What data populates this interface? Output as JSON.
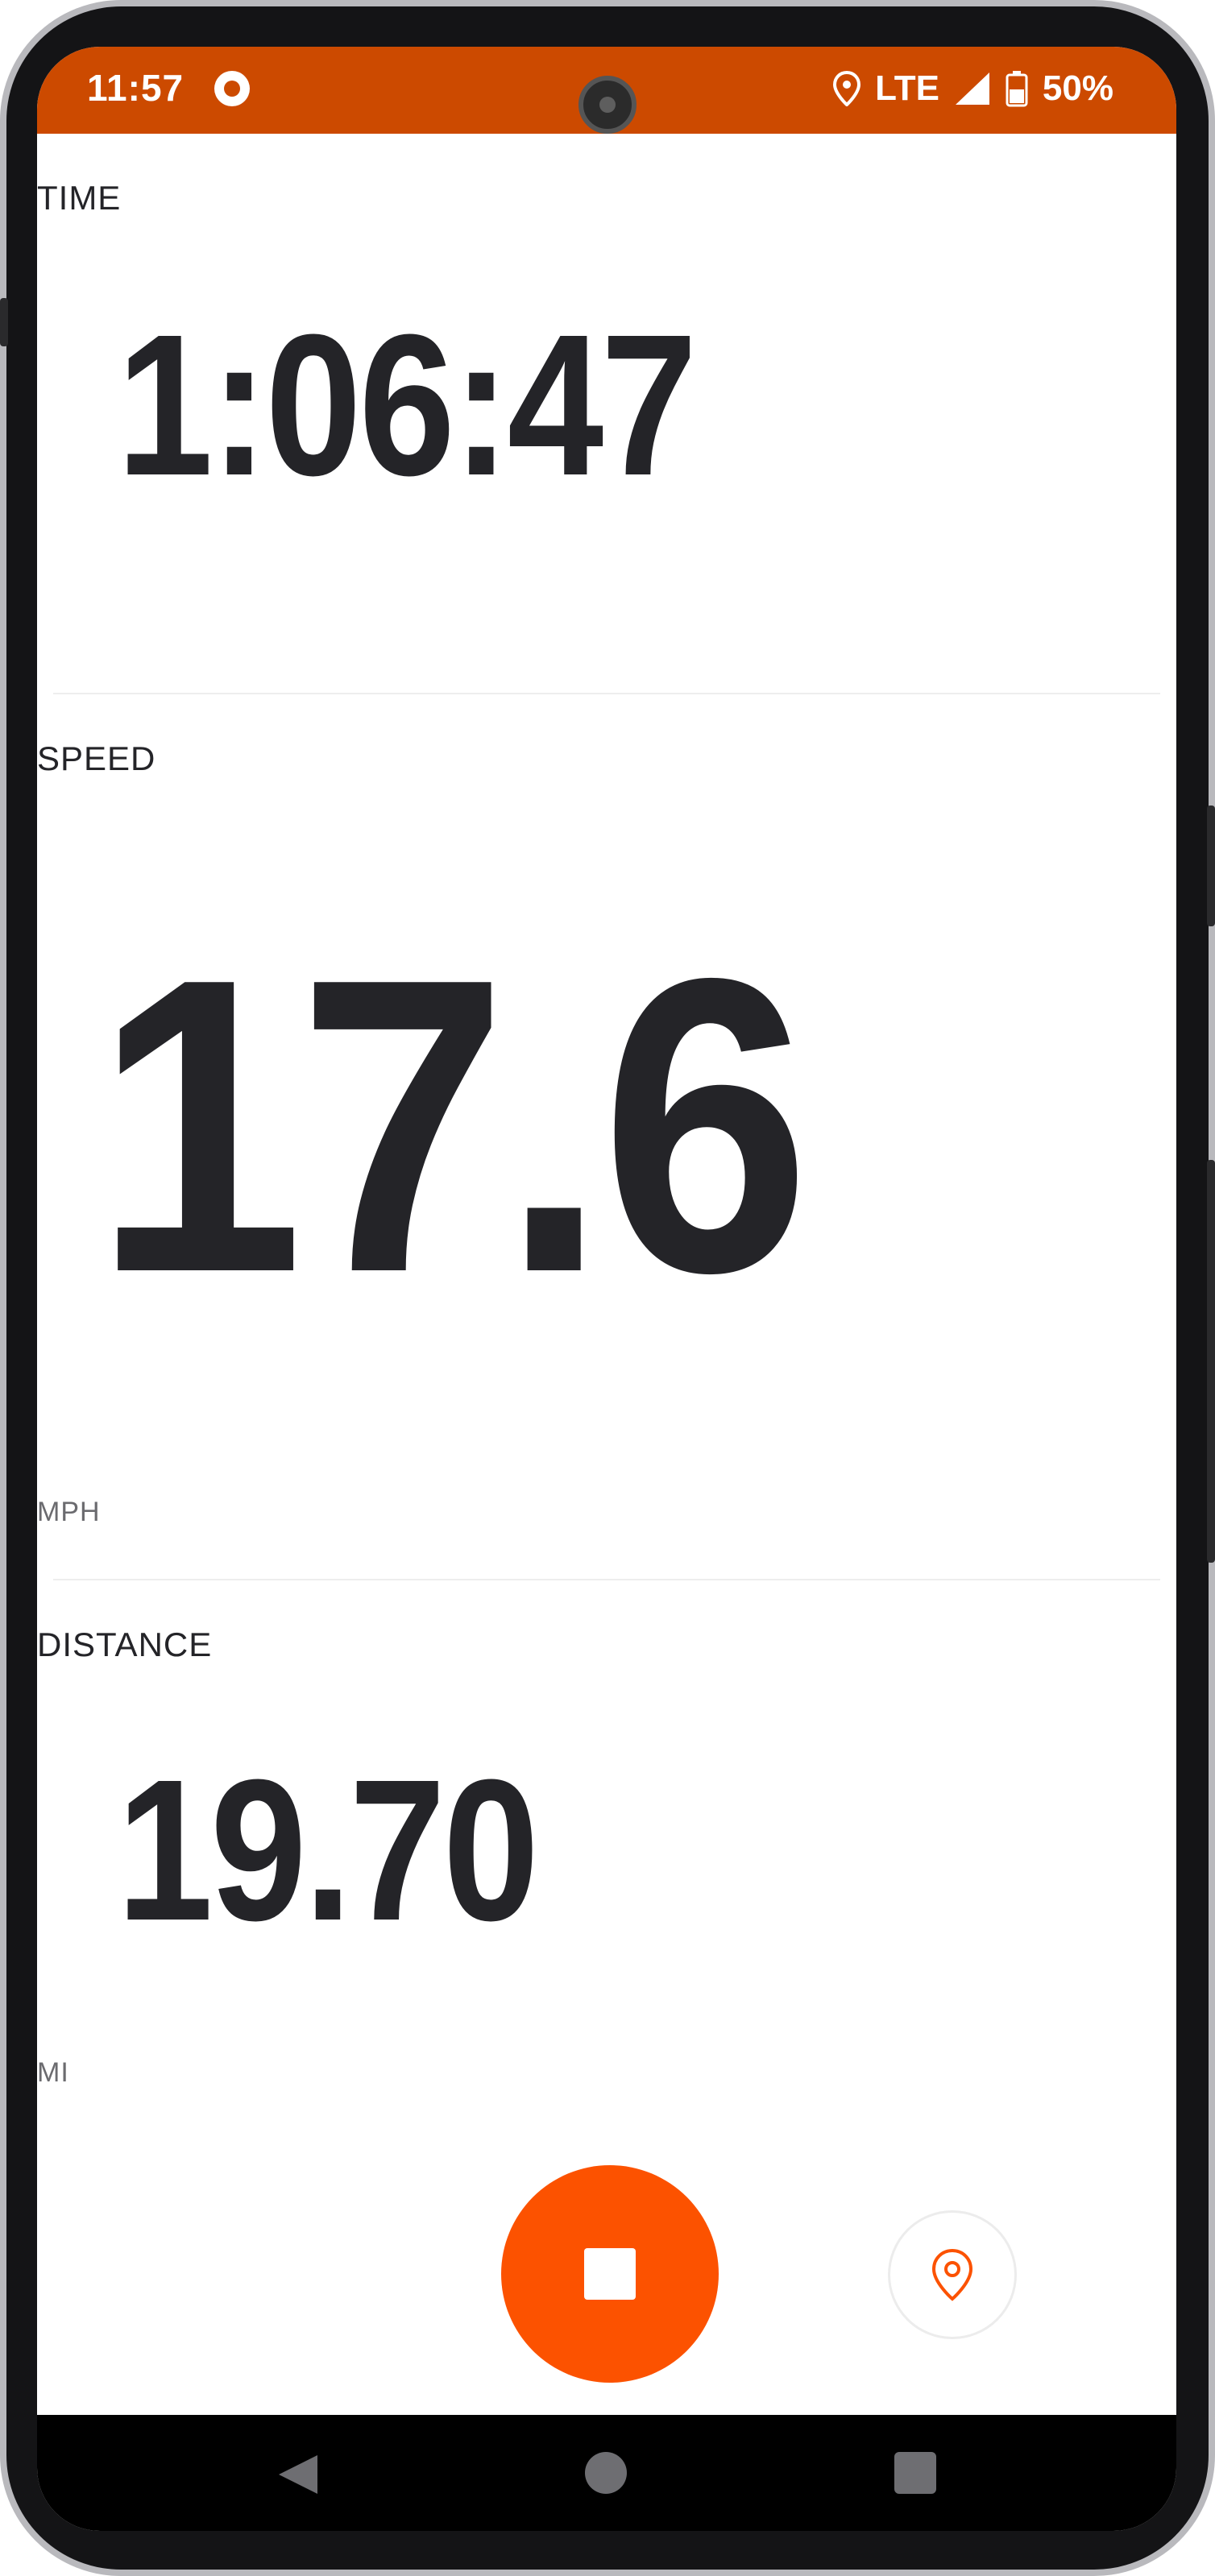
{
  "status_bar": {
    "time": "11:57",
    "network": "LTE",
    "battery": "50%",
    "icons": [
      "record-indicator-icon",
      "location-icon",
      "signal-icon",
      "battery-icon"
    ],
    "background": "#cc4a00"
  },
  "metrics": {
    "time": {
      "label": "TIME",
      "value": "1:06:47"
    },
    "speed": {
      "label": "SPEED",
      "value": "17.6",
      "unit": "MPH"
    },
    "distance": {
      "label": "DISTANCE",
      "value": "19.70",
      "unit": "MI"
    }
  },
  "controls": {
    "stop": {
      "icon": "stop-icon",
      "color": "#fc5200"
    },
    "location": {
      "icon": "location-pin-icon",
      "color": "#fc5200"
    }
  },
  "navbar": {
    "icons": [
      "back-icon",
      "home-icon",
      "recents-icon"
    ]
  }
}
